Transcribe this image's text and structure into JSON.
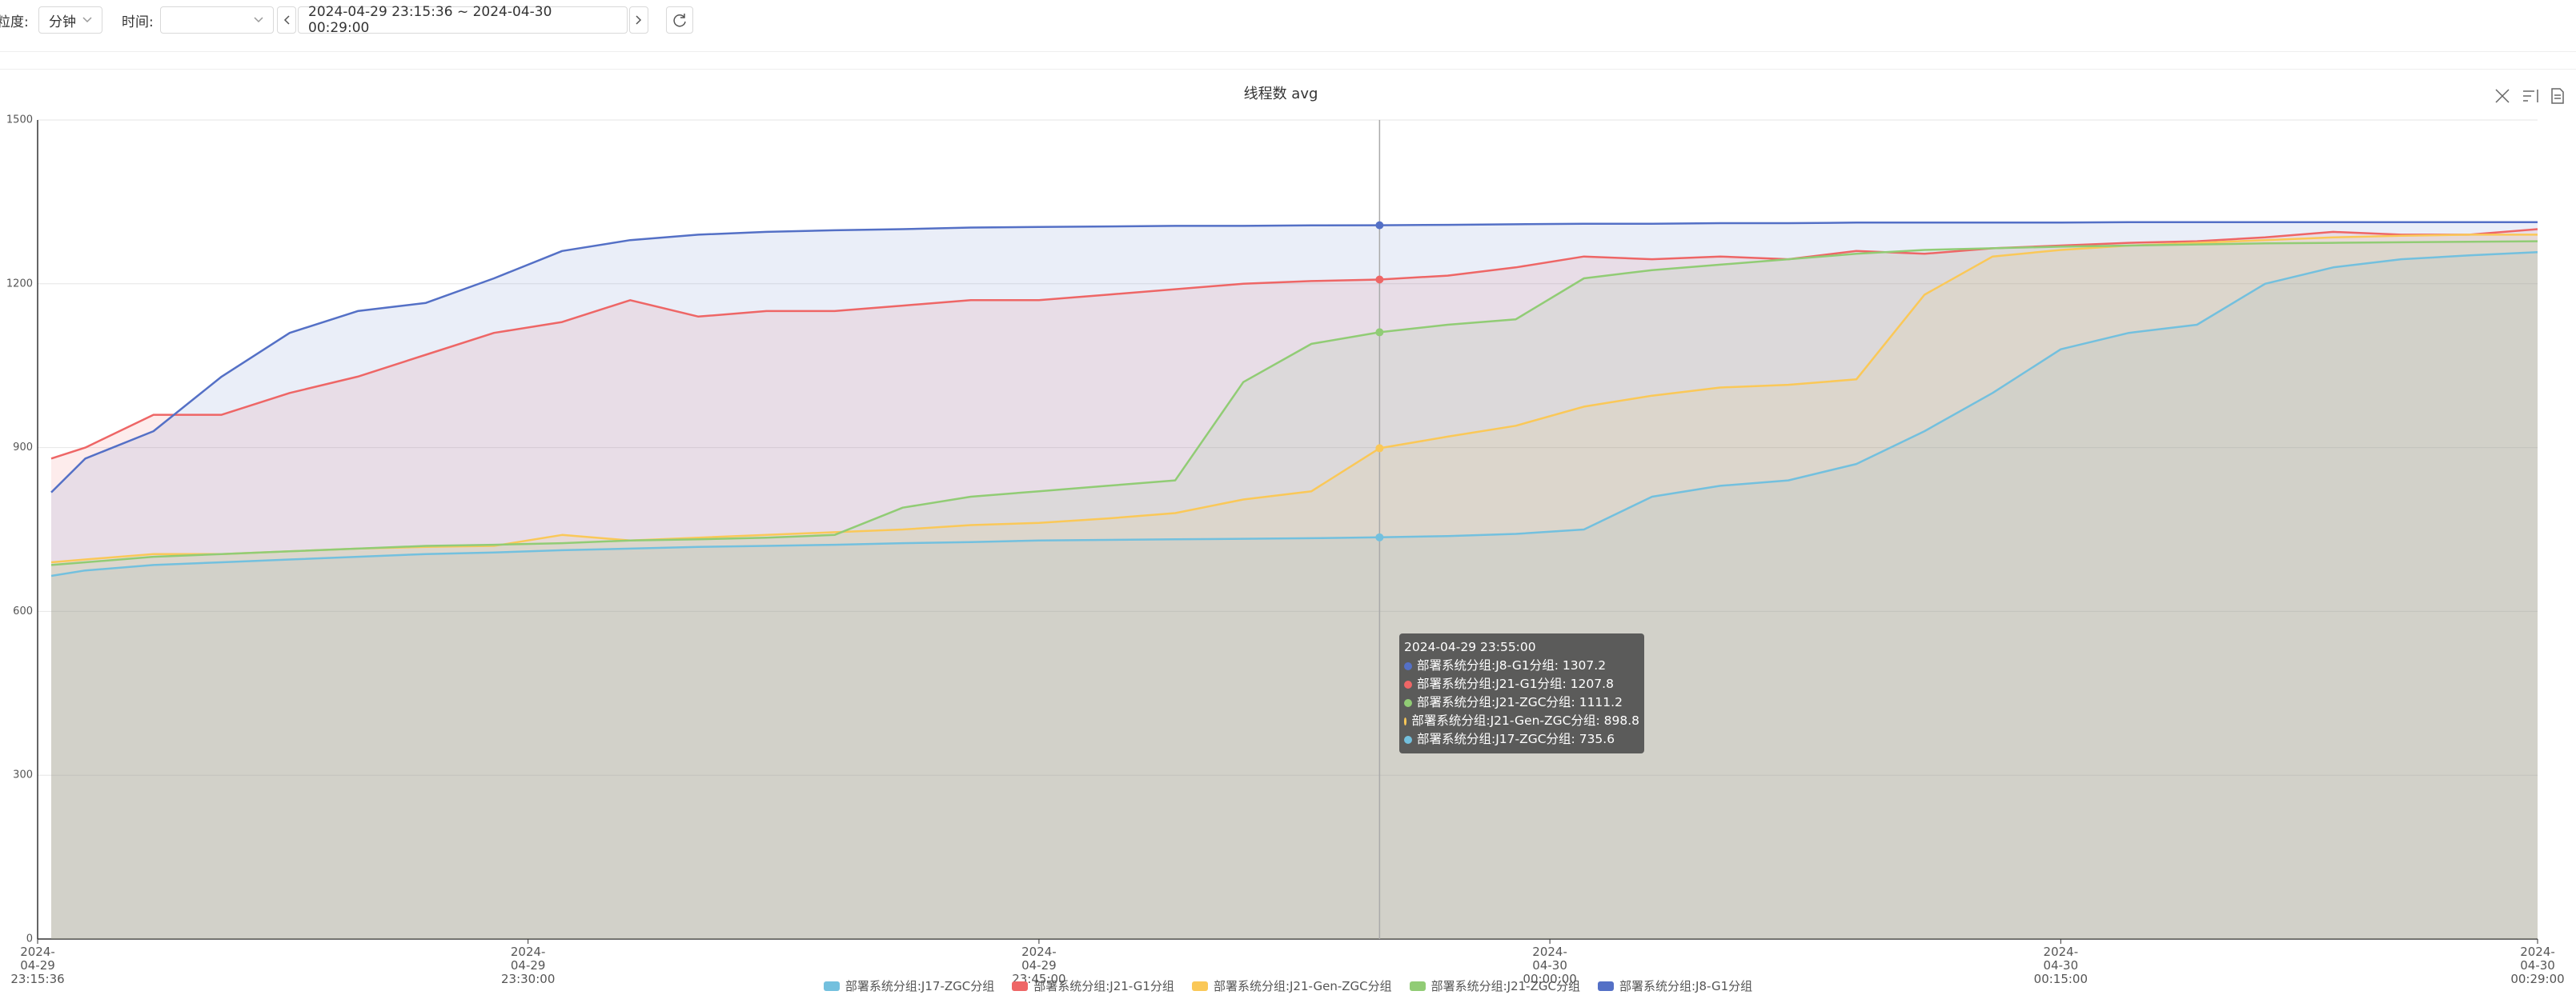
{
  "toolbar": {
    "granularity_label": "粒度:",
    "granularity": "分钟",
    "time_label": "时间:",
    "range": "2024-04-29 23:15:36 ~ 2024-04-30 00:29:00"
  },
  "chart_data": {
    "type": "line",
    "title": "线程数 avg",
    "x": [
      "2024-04-29 23:16:00",
      "2024-04-29 23:17:00",
      "2024-04-29 23:19:00",
      "2024-04-29 23:21:00",
      "2024-04-29 23:23:00",
      "2024-04-29 23:25:00",
      "2024-04-29 23:27:00",
      "2024-04-29 23:29:00",
      "2024-04-29 23:31:00",
      "2024-04-29 23:33:00",
      "2024-04-29 23:35:00",
      "2024-04-29 23:37:00",
      "2024-04-29 23:39:00",
      "2024-04-29 23:41:00",
      "2024-04-29 23:43:00",
      "2024-04-29 23:45:00",
      "2024-04-29 23:47:00",
      "2024-04-29 23:49:00",
      "2024-04-29 23:51:00",
      "2024-04-29 23:53:00",
      "2024-04-29 23:55:00",
      "2024-04-29 23:57:00",
      "2024-04-29 23:59:00",
      "2024-04-30 00:01:00",
      "2024-04-30 00:03:00",
      "2024-04-30 00:05:00",
      "2024-04-30 00:07:00",
      "2024-04-30 00:09:00",
      "2024-04-30 00:11:00",
      "2024-04-30 00:13:00",
      "2024-04-30 00:15:00",
      "2024-04-30 00:17:00",
      "2024-04-30 00:19:00",
      "2024-04-30 00:21:00",
      "2024-04-30 00:23:00",
      "2024-04-30 00:25:00",
      "2024-04-30 00:27:00",
      "2024-04-30 00:29:00"
    ],
    "series": [
      {
        "name": "部署系统分组:J17-ZGC分组",
        "color": "#73c0de",
        "values": [
          665,
          675,
          685,
          690,
          695,
          700,
          705,
          708,
          712,
          715,
          718,
          720,
          722,
          725,
          727,
          730,
          731,
          732,
          733,
          734,
          735.6,
          738,
          742,
          750,
          810,
          830,
          840,
          870,
          930,
          1000,
          1080,
          1110,
          1125,
          1200,
          1230,
          1245,
          1252,
          1258
        ]
      },
      {
        "name": "部署系统分组:J21-G1分组",
        "color": "#ee6666",
        "values": [
          880,
          900,
          960,
          960,
          1000,
          1030,
          1070,
          1110,
          1130,
          1170,
          1140,
          1150,
          1150,
          1160,
          1170,
          1170,
          1180,
          1190,
          1200,
          1205,
          1207.8,
          1215,
          1230,
          1250,
          1245,
          1250,
          1245,
          1260,
          1255,
          1265,
          1270,
          1275,
          1278,
          1285,
          1295,
          1290,
          1290,
          1300
        ]
      },
      {
        "name": "部署系统分组:J21-Gen-ZGC分组",
        "color": "#fac858",
        "values": [
          690,
          695,
          705,
          705,
          710,
          715,
          718,
          720,
          740,
          730,
          735,
          740,
          745,
          750,
          758,
          762,
          770,
          780,
          805,
          820,
          898.8,
          920,
          940,
          975,
          995,
          1010,
          1015,
          1025,
          1180,
          1250,
          1262,
          1270,
          1275,
          1280,
          1285,
          1288,
          1290,
          1290
        ]
      },
      {
        "name": "部署系统分组:J21-ZGC分组",
        "color": "#91cc75",
        "values": [
          685,
          690,
          700,
          705,
          710,
          715,
          720,
          722,
          725,
          730,
          732,
          735,
          740,
          790,
          810,
          820,
          830,
          840,
          1020,
          1090,
          1111.2,
          1125,
          1135,
          1210,
          1225,
          1235,
          1245,
          1255,
          1262,
          1265,
          1268,
          1270,
          1272,
          1274,
          1275,
          1276,
          1277,
          1278
        ]
      },
      {
        "name": "部署系统分组:J8-G1分组",
        "color": "#5470c6",
        "values": [
          818,
          880,
          930,
          1030,
          1110,
          1150,
          1165,
          1210,
          1260,
          1280,
          1290,
          1295,
          1298,
          1300,
          1303,
          1304,
          1305,
          1306,
          1306,
          1307,
          1307.2,
          1308,
          1309,
          1310,
          1310,
          1311,
          1311,
          1312,
          1312,
          1312,
          1312,
          1313,
          1313,
          1313,
          1313,
          1313,
          1313,
          1313
        ]
      }
    ],
    "xlim": [
      "2024-04-29 23:15:36",
      "2024-04-30 00:29:00"
    ],
    "xticks": [
      "2024-04-29 23:15:36",
      "2024-04-29 23:30:00",
      "2024-04-29 23:45:00",
      "2024-04-30 00:00:00",
      "2024-04-30 00:15:00",
      "2024-04-30 00:29:00"
    ],
    "ylim": [
      0,
      1500
    ],
    "yticks": [
      0,
      300,
      600,
      900,
      1200,
      1500
    ],
    "grid": true,
    "tooltip": {
      "time": "2024-04-29 23:55:00",
      "lines": [
        "部署系统分组:J8-G1分组: 1307.2",
        "部署系统分组:J21-G1分组: 1207.8",
        "部署系统分组:J21-ZGC分组: 1111.2",
        "部署系统分组:J21-Gen-ZGC分组: 898.8",
        "部署系统分组:J17-ZGC分组: 735.6"
      ],
      "colors": [
        "#5470c6",
        "#ee6666",
        "#91cc75",
        "#fac858",
        "#73c0de"
      ]
    }
  }
}
